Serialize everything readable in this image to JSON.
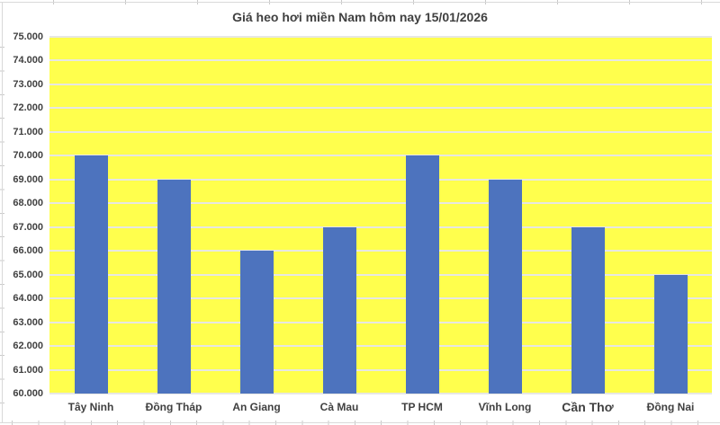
{
  "chart_data": {
    "type": "bar",
    "title": "Giá heo hơi miền Nam hôm nay 15/01/2026",
    "categories": [
      "Tây Ninh",
      "Đồng Tháp",
      "An Giang",
      "Cà Mau",
      "TP HCM",
      "Vĩnh Long",
      "Cần Thơ",
      "Đồng Nai"
    ],
    "values": [
      70000,
      69000,
      66000,
      67000,
      70000,
      69000,
      67000,
      65000
    ],
    "xlabel": "",
    "ylabel": "",
    "ylim": [
      60000,
      75000
    ],
    "y_major_step": 1000,
    "y_tick_labels": [
      "60.000",
      "61.000",
      "62.000",
      "63.000",
      "64.000",
      "65.000",
      "66.000",
      "67.000",
      "68.000",
      "69.000",
      "70.000",
      "71.000",
      "72.000",
      "73.000",
      "74.000",
      "75.000"
    ],
    "grid": true,
    "legend": false,
    "emphasized_category_index": 6,
    "colors": {
      "bar": "#4D73BE",
      "plot_background": "#FFFF4D",
      "gridline": "#E7E7E2",
      "text": "#404040",
      "frame": "#D9D9D9",
      "background": "#FFFFFF"
    }
  }
}
